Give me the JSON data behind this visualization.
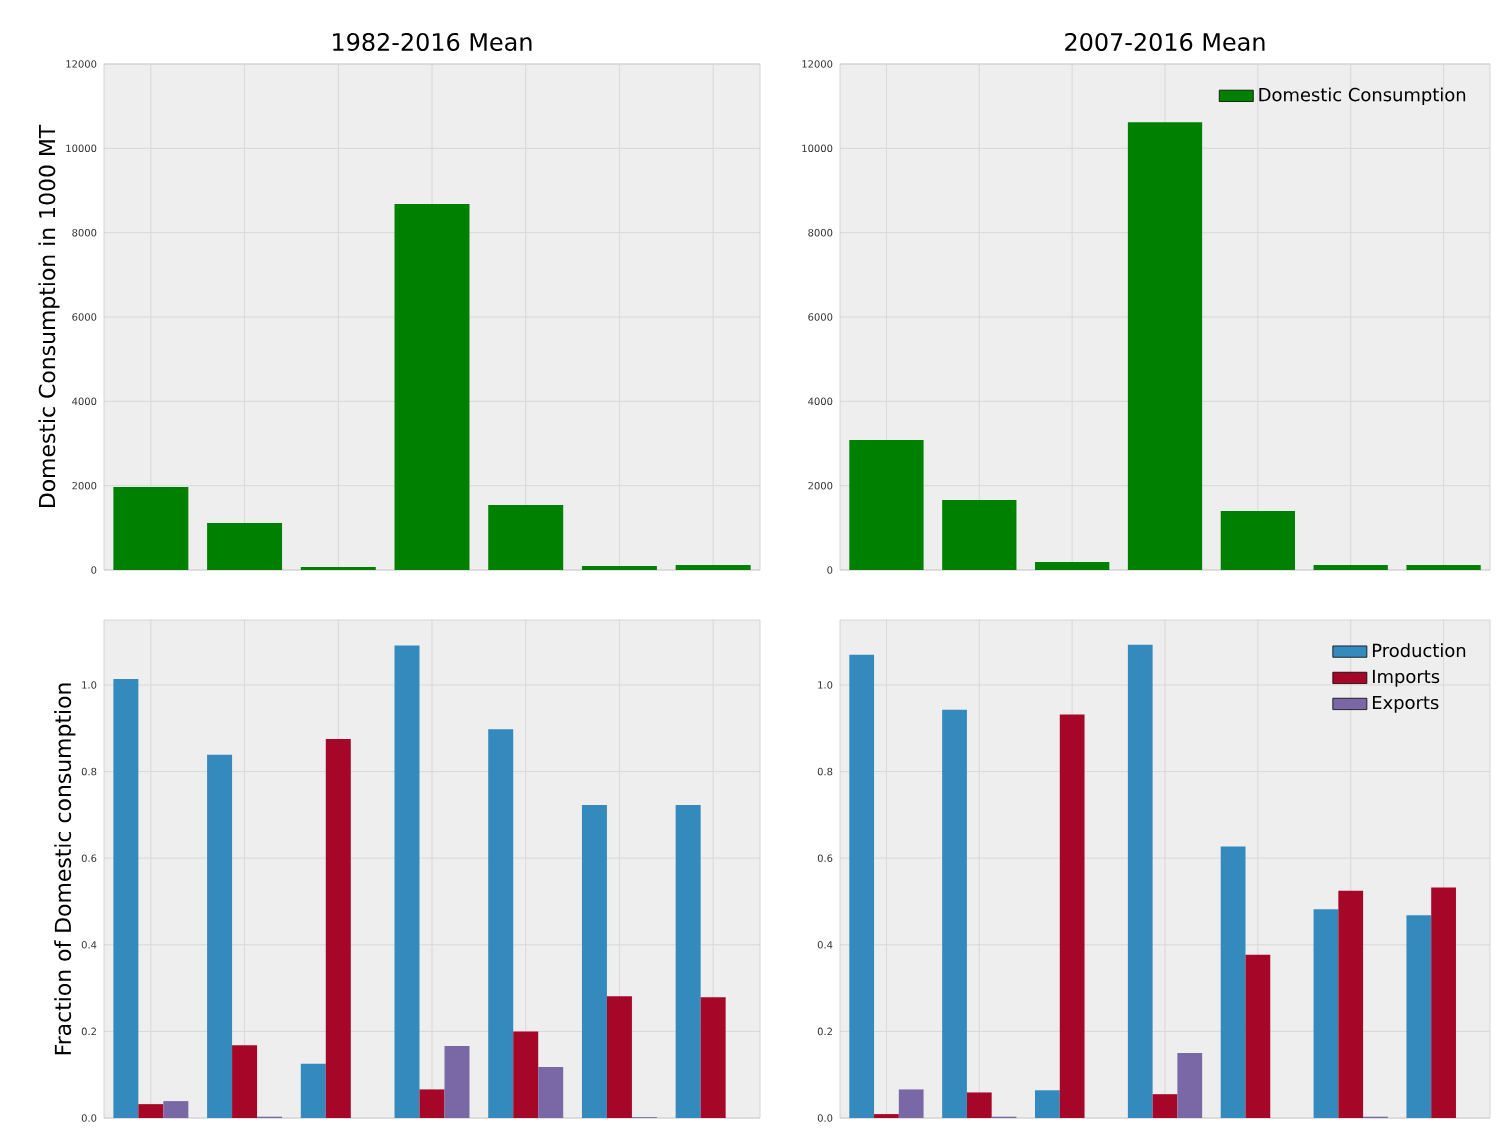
{
  "chart_data": [
    {
      "type": "bar",
      "title": "1982-2016 Mean",
      "ylabel": "Domestic Consumption in 1000 MT",
      "categories": [
        null,
        null,
        null,
        null,
        null,
        null,
        null
      ],
      "series": [
        {
          "color": "#008000",
          "values": [
            1970,
            1115,
            70,
            8680,
            1540,
            95,
            120
          ]
        }
      ],
      "ylim": [
        0,
        12000
      ],
      "yticks": [
        0,
        2000,
        4000,
        6000,
        8000,
        10000,
        12000
      ],
      "grid": true,
      "tick_labels": "y"
    },
    {
      "type": "bar",
      "title": "2007-2016 Mean",
      "categories": [
        null,
        null,
        null,
        null,
        null,
        null,
        null
      ],
      "series": [
        {
          "name": "Domestic Consumption",
          "color": "#008000",
          "values": [
            3080,
            1660,
            190,
            10620,
            1400,
            120,
            120
          ]
        }
      ],
      "ylim": [
        0,
        12000
      ],
      "yticks": [
        0,
        2000,
        4000,
        6000,
        8000,
        10000,
        12000
      ],
      "grid": true,
      "legend": "top right",
      "tick_labels": "y"
    },
    {
      "type": "bar",
      "ylabel": "Fraction of Domestic consumption",
      "categories": [
        null,
        null,
        null,
        null,
        null,
        null,
        null
      ],
      "series": [
        {
          "color": "#348abd",
          "values": [
            1.014,
            0.839,
            0.125,
            1.091,
            0.898,
            0.723,
            0.723
          ]
        },
        {
          "color": "#a60628",
          "values": [
            0.032,
            0.168,
            0.875,
            0.066,
            0.2,
            0.281,
            0.279
          ]
        },
        {
          "color": "#7a68a6",
          "values": [
            0.039,
            0.003,
            0,
            0.166,
            0.118,
            0.002,
            0
          ]
        }
      ],
      "ylim": [
        0,
        1.15
      ],
      "yticks": [
        {
          "value": 0,
          "label": "0.0"
        },
        {
          "value": 0.2,
          "label": "0.2"
        },
        {
          "value": 0.4,
          "label": "0.4"
        },
        {
          "value": 0.6,
          "label": "0.6"
        },
        {
          "value": 0.8,
          "label": "0.8"
        },
        {
          "value": 1,
          "label": "1.0"
        }
      ],
      "grid": true,
      "tick_labels": "y"
    },
    {
      "type": "bar",
      "categories": [
        null,
        null,
        null,
        null,
        null,
        null,
        null
      ],
      "series": [
        {
          "name": "Production",
          "color": "#348abd",
          "values": [
            1.07,
            0.943,
            0.064,
            1.093,
            0.627,
            0.482,
            0.468
          ]
        },
        {
          "name": "Imports",
          "color": "#a60628",
          "values": [
            0.009,
            0.059,
            0.932,
            0.055,
            0.377,
            0.525,
            0.532
          ]
        },
        {
          "name": "Exports",
          "color": "#7a68a6",
          "values": [
            0.066,
            0.003,
            0,
            0.15,
            0,
            0.003,
            0
          ]
        }
      ],
      "ylim": [
        0,
        1.15
      ],
      "yticks": [
        {
          "value": 0,
          "label": "0.0"
        },
        {
          "value": 0.2,
          "label": "0.2"
        },
        {
          "value": 0.4,
          "label": "0.4"
        },
        {
          "value": 0.6,
          "label": "0.6"
        },
        {
          "value": 0.8,
          "label": "0.8"
        },
        {
          "value": 1,
          "label": "1.0"
        }
      ],
      "grid": true,
      "legend": "top right",
      "tick_labels": "y"
    }
  ]
}
